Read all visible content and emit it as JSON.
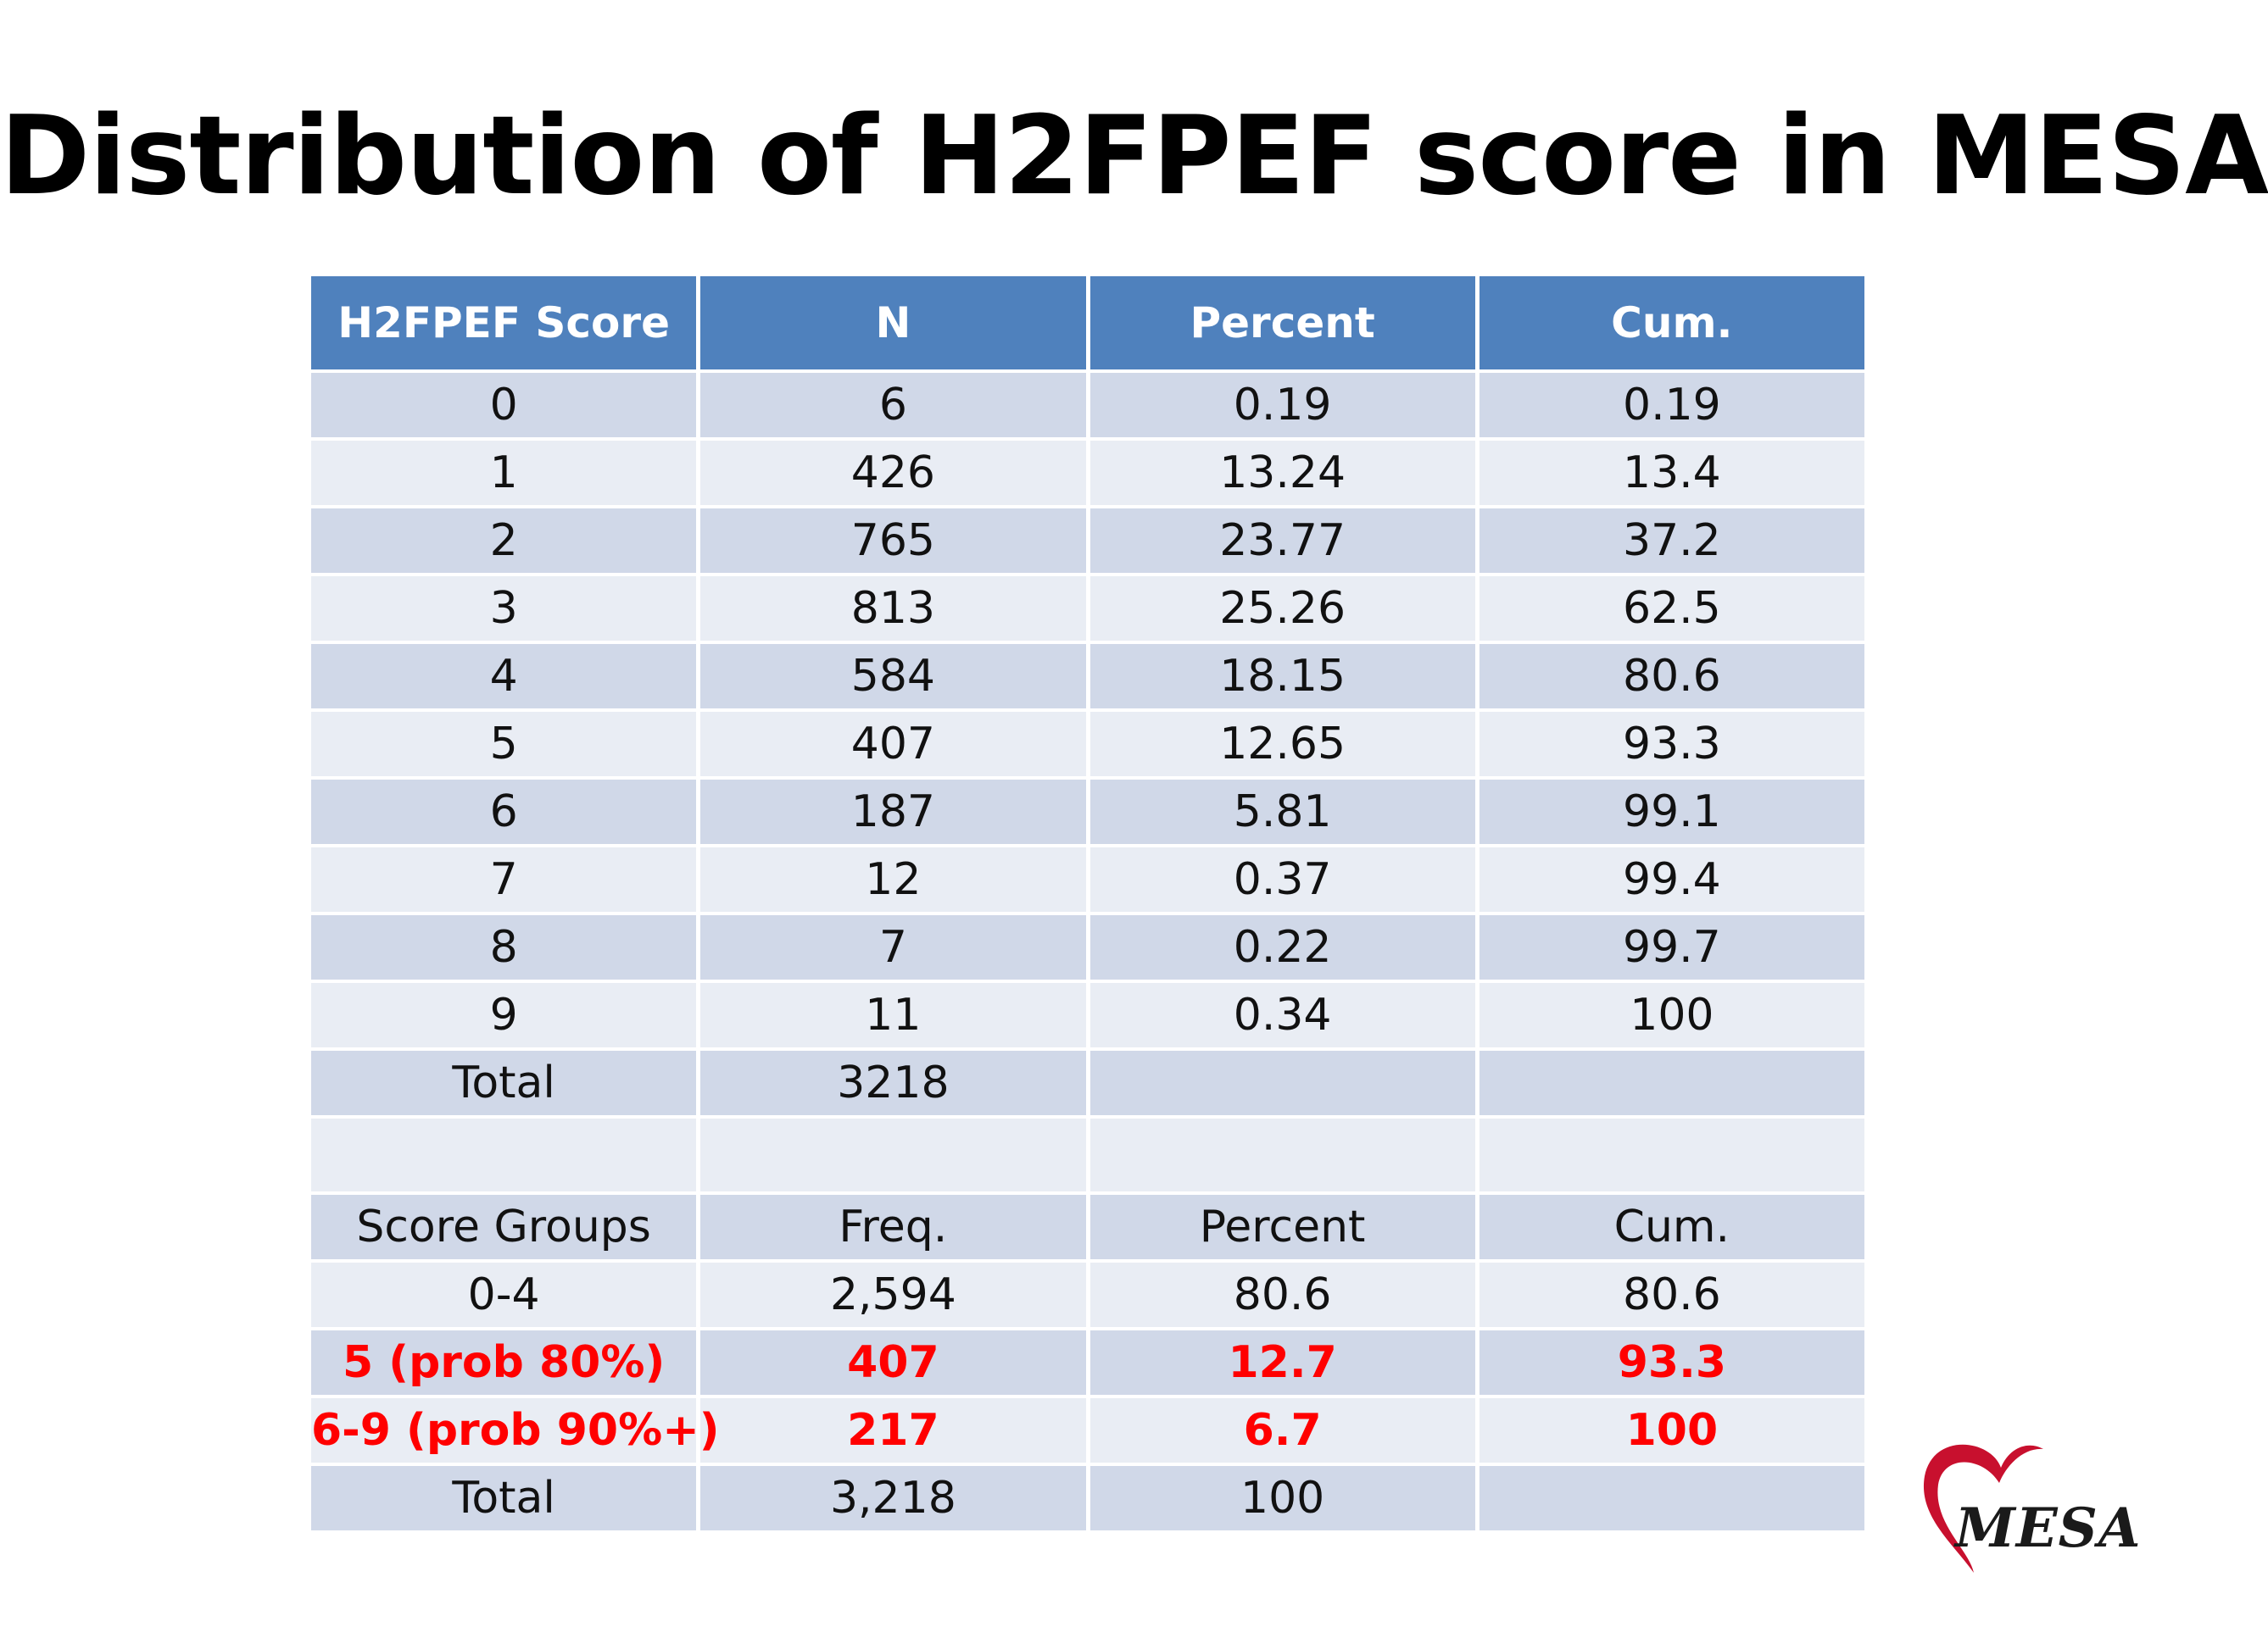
{
  "title": "Distribution of H2FPEF score in MESA",
  "table": {
    "headers": [
      "H2FPEF Score",
      "N",
      "Percent",
      "Cum."
    ],
    "rows": [
      [
        "0",
        "6",
        "0.19",
        "0.19"
      ],
      [
        "1",
        "426",
        "13.24",
        "13.4"
      ],
      [
        "2",
        "765",
        "23.77",
        "37.2"
      ],
      [
        "3",
        "813",
        "25.26",
        "62.5"
      ],
      [
        "4",
        "584",
        "18.15",
        "80.6"
      ],
      [
        "5",
        "407",
        "12.65",
        "93.3"
      ],
      [
        "6",
        "187",
        "5.81",
        "99.1"
      ],
      [
        "7",
        "12",
        "0.37",
        "99.4"
      ],
      [
        "8",
        "7",
        "0.22",
        "99.7"
      ],
      [
        "9",
        "11",
        "0.34",
        "100"
      ]
    ],
    "total_row": [
      "Total",
      "3218",
      "",
      ""
    ],
    "group_header": [
      "Score Groups",
      "Freq.",
      "Percent",
      "Cum."
    ],
    "group_rows": [
      [
        "0-4",
        "2,594",
        "80.6",
        "80.6"
      ],
      [
        "5 (prob 80%)",
        "407",
        "12.7",
        "93.3"
      ],
      [
        "6-9 (prob 90%+)",
        "217",
        "6.7",
        "100"
      ]
    ],
    "group_total": [
      "Total",
      "3,218",
      "100",
      ""
    ]
  },
  "colors": {
    "header_bg": "#4f81bd",
    "row_dark": "#d0d8e8",
    "row_light": "#e9edf4",
    "highlight_text": "#ff0000",
    "logo_heart": "#c8102e"
  },
  "logo": {
    "text": "MESA",
    "icon": "heart-icon"
  }
}
